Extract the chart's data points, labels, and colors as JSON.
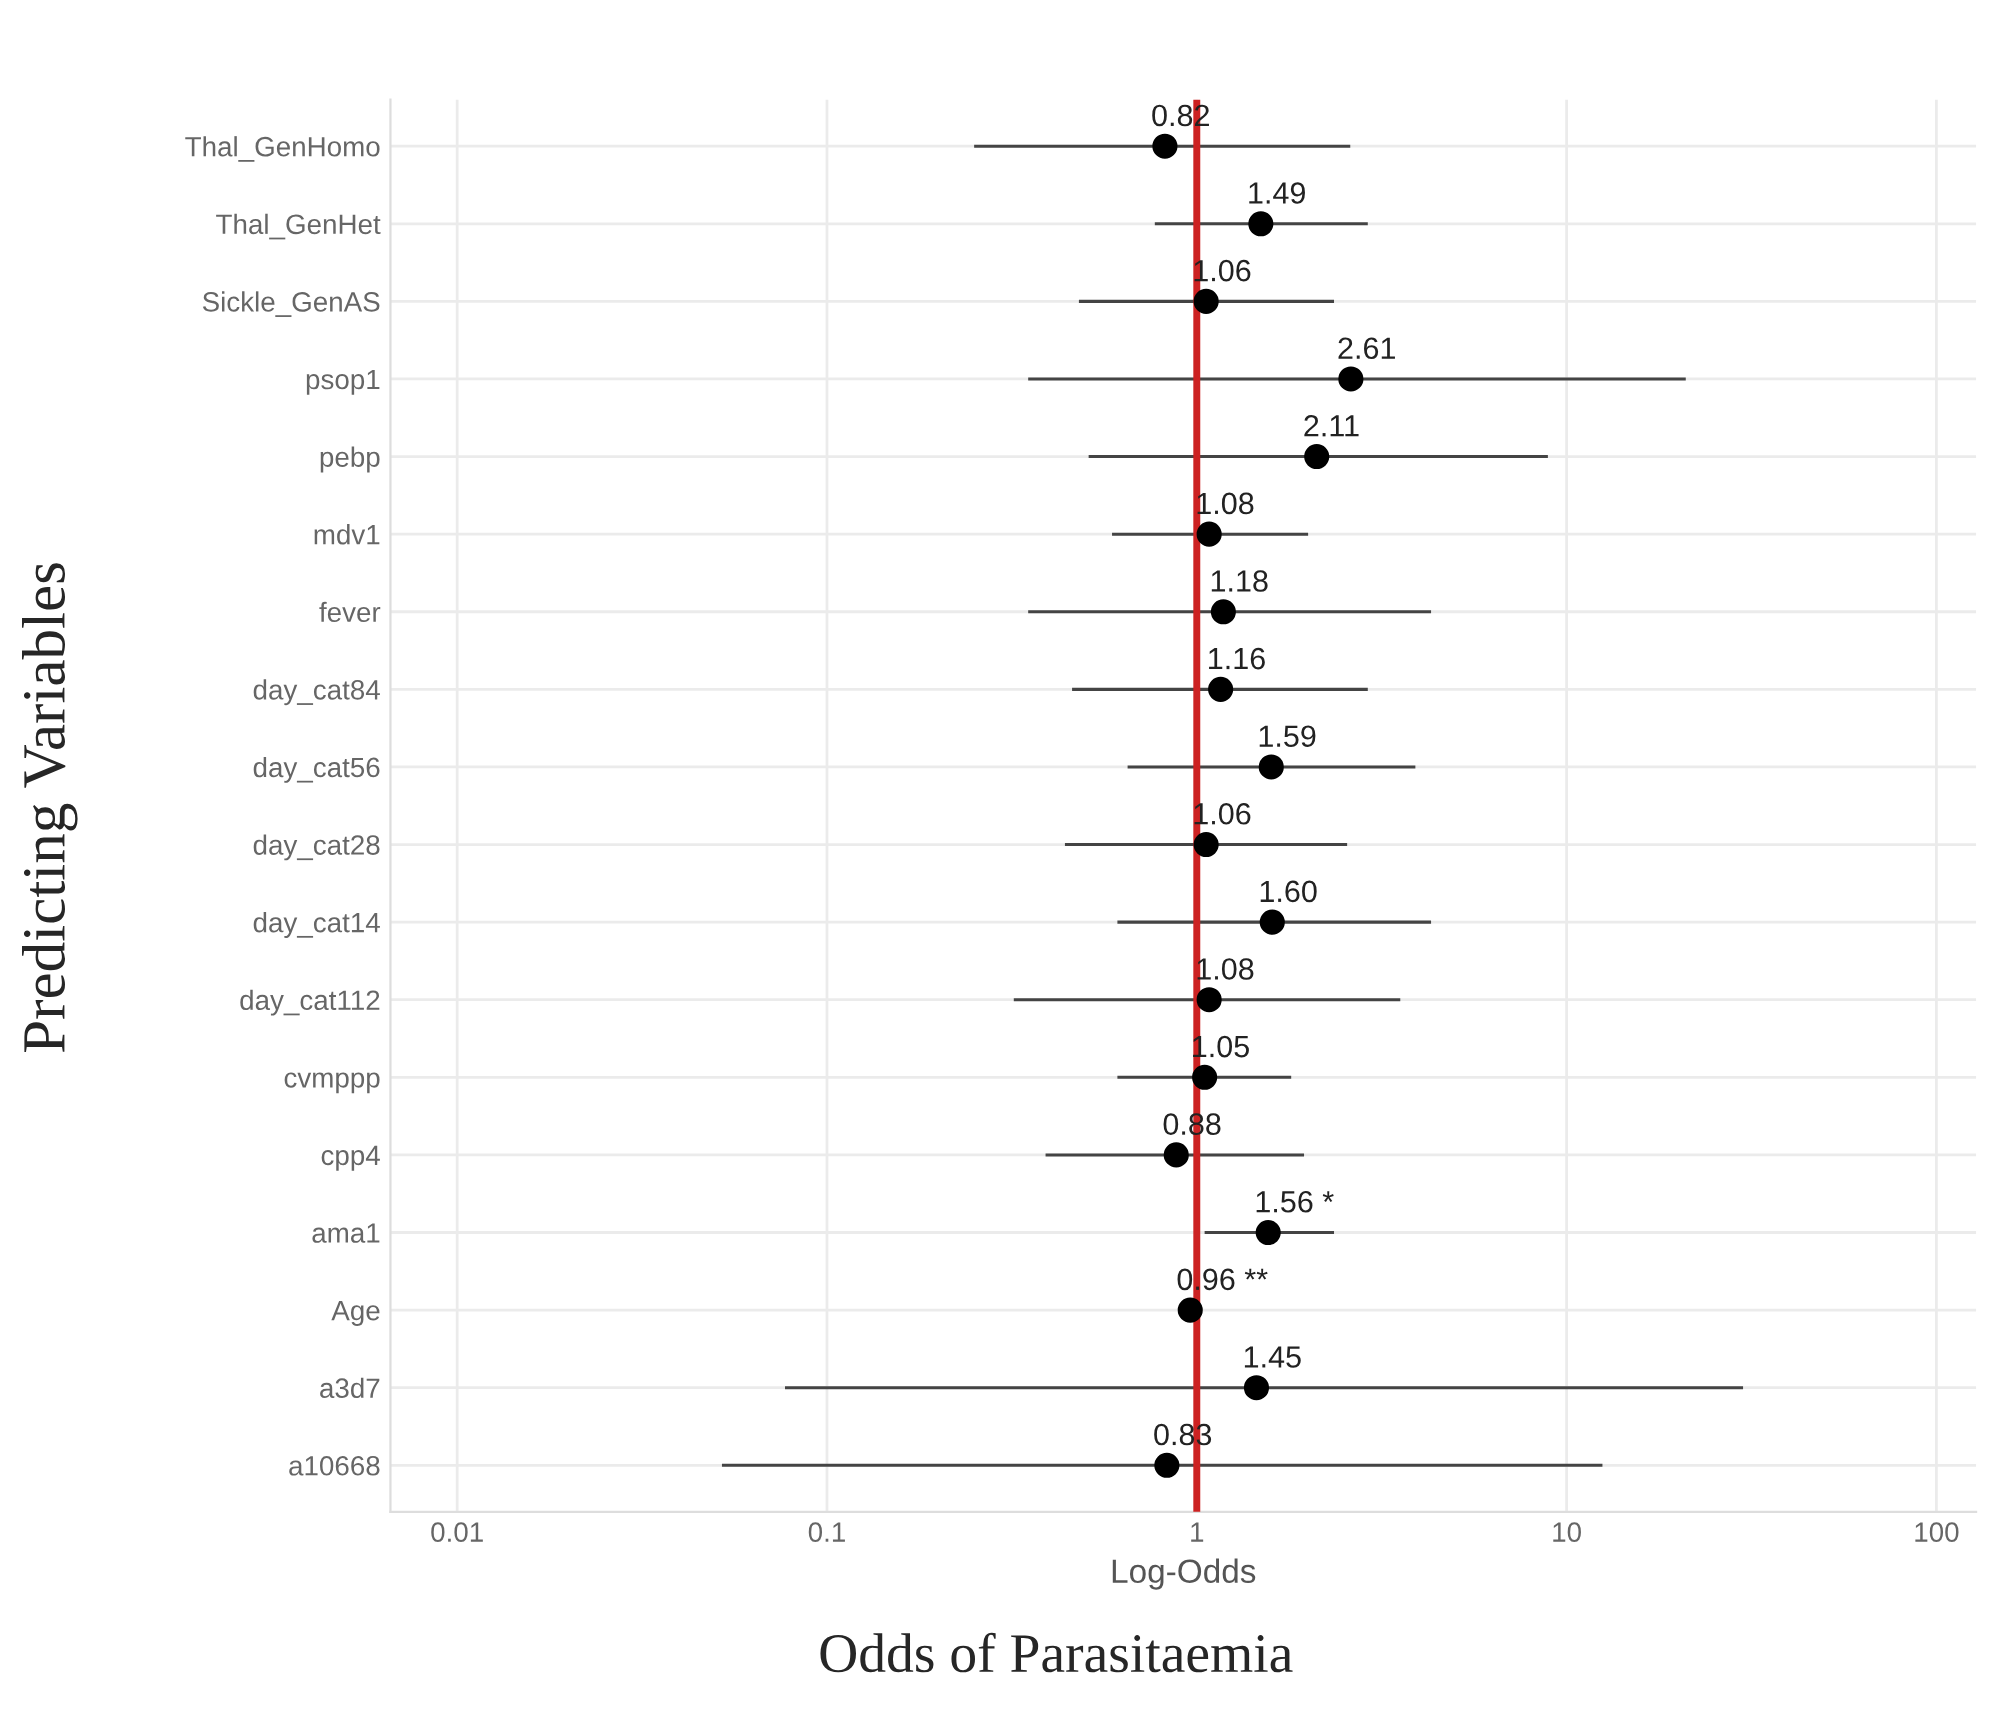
{
  "chart_data": {
    "type": "scatter",
    "orientation": "horizontal",
    "ylabel": "Predicting Variables",
    "xlabel": "Log-Odds",
    "annotations": [
      "Odds of Parasitaemia"
    ],
    "categories": [
      "Thal_GenHomo",
      "Thal_GenHet",
      "Sickle_GenAS",
      "psop1",
      "pebp",
      "mdv1",
      "fever",
      "day_cat84",
      "day_cat56",
      "day_cat28",
      "day_cat14",
      "day_cat112",
      "cvmppp",
      "cpp4",
      "ama1",
      "Age",
      "a3d7",
      "a10668"
    ],
    "series": [
      {
        "color": "#000000",
        "values": [
          0.82,
          1.49,
          1.06,
          2.61,
          2.11,
          1.08,
          1.18,
          1.16,
          1.59,
          1.06,
          1.6,
          1.08,
          1.05,
          0.88,
          1.56,
          0.96,
          1.45,
          0.83
        ],
        "errors": [
          [
            0.25,
            2.6
          ],
          [
            0.77,
            2.9
          ],
          [
            0.48,
            2.35
          ],
          [
            0.35,
            21
          ],
          [
            0.51,
            8.9
          ],
          [
            0.59,
            2.0
          ],
          [
            0.35,
            4.3
          ],
          [
            0.46,
            2.9
          ],
          [
            0.65,
            3.9
          ],
          [
            0.44,
            2.55
          ],
          [
            0.61,
            4.3
          ],
          [
            0.32,
            3.55
          ],
          [
            0.61,
            1.8
          ],
          [
            0.39,
            1.95
          ],
          [
            1.05,
            2.35
          ],
          [
            0.93,
            0.99
          ],
          [
            0.077,
            30
          ],
          [
            0.052,
            12.5
          ]
        ],
        "value_labels": [
          "0.82",
          "1.49",
          "1.06",
          "2.61",
          "2.11",
          "1.08",
          "1.18",
          "1.16",
          "1.59",
          "1.06",
          "1.60",
          "1.08",
          "1.05",
          "0.88",
          "1.56 *",
          "0.96 **",
          "1.45",
          "0.83"
        ]
      }
    ],
    "log": "x",
    "xlim": [
      0.0066,
      128
    ],
    "xticks": [
      0.01,
      0.1,
      1,
      10,
      100
    ],
    "ref_lines": [
      {
        "axis": "x",
        "value": 1,
        "color": "#cc2222"
      }
    ],
    "grid": true,
    "marker": "circle",
    "legend": false
  }
}
